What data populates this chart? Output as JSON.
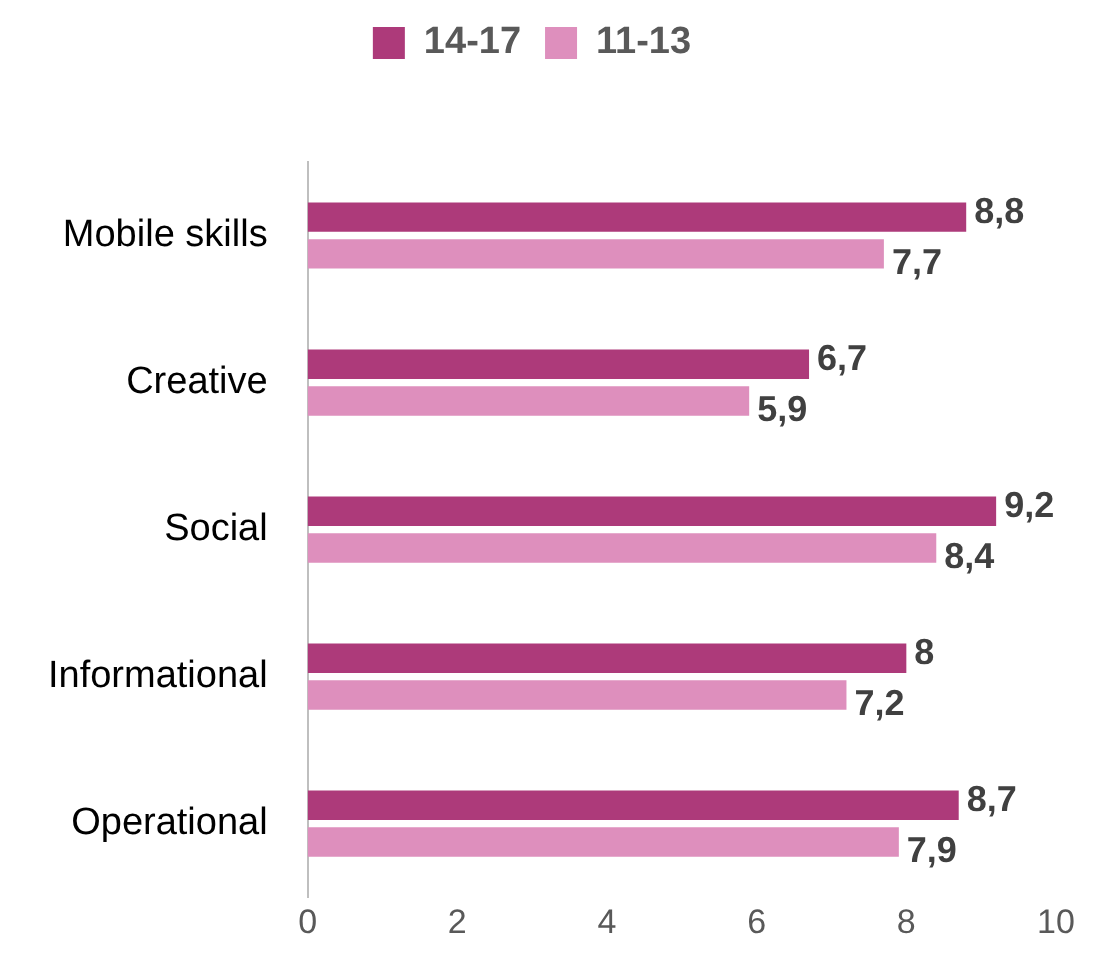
{
  "chart_data": {
    "type": "bar",
    "orientation": "horizontal",
    "categories": [
      "Mobile skills",
      "Creative",
      "Social",
      "Informational",
      "Operational"
    ],
    "series": [
      {
        "name": "14-17",
        "color": "#ad3a7a",
        "values": [
          8.8,
          6.7,
          9.2,
          8,
          8.7
        ],
        "value_labels": [
          "8,8",
          "6,7",
          "9,2",
          "8",
          "8,7"
        ]
      },
      {
        "name": "11-13",
        "color": "#de8fbd",
        "values": [
          7.7,
          5.9,
          8.4,
          7.2,
          7.9
        ],
        "value_labels": [
          "7,7",
          "5,9",
          "8,4",
          "7,2",
          "7,9"
        ]
      }
    ],
    "xlim": [
      0,
      10
    ],
    "xticks": [
      0,
      2,
      4,
      6,
      8,
      10
    ],
    "grid": false,
    "legend": "top"
  }
}
